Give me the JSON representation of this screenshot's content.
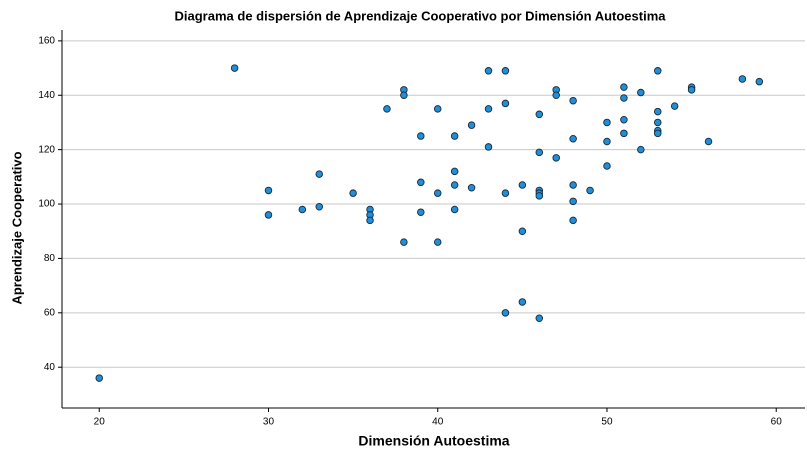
{
  "chart_data": {
    "type": "scatter",
    "title": "Diagrama de dispersión de Aprendizaje Cooperativo por Dimensión Autoestima",
    "x_label": "Dimensión Autoestima",
    "y_label": "Aprendizaje Cooperativo",
    "color": "#1e8fd8",
    "edge_color": "#1a2a3a",
    "grid": true,
    "x": [
      20,
      28,
      30,
      30,
      32,
      33,
      33,
      35,
      36,
      36,
      36,
      37,
      38,
      38,
      38,
      39,
      39,
      39,
      40,
      40,
      40,
      41,
      41,
      41,
      41,
      42,
      42,
      43,
      43,
      43,
      44,
      44,
      44,
      44,
      45,
      45,
      45,
      46,
      46,
      46,
      46,
      46,
      46,
      47,
      47,
      47,
      48,
      48,
      48,
      48,
      48,
      49,
      50,
      50,
      50,
      51,
      51,
      51,
      51,
      52,
      52,
      53,
      53,
      53,
      53,
      53,
      54,
      55,
      55,
      56,
      58,
      59
    ],
    "values": [
      36,
      150,
      105,
      96,
      98,
      111,
      99,
      104,
      98,
      96,
      94,
      135,
      142,
      140,
      86,
      125,
      108,
      97,
      135,
      104,
      86,
      125,
      112,
      107,
      98,
      129,
      106,
      149,
      135,
      121,
      149,
      137,
      104,
      60,
      107,
      90,
      64,
      133,
      119,
      105,
      104,
      103,
      58,
      142,
      140,
      117,
      138,
      124,
      107,
      101,
      94,
      105,
      130,
      123,
      114,
      143,
      139,
      131,
      126,
      141,
      120,
      149,
      134,
      130,
      127,
      126,
      136,
      143,
      142,
      123,
      146,
      145
    ],
    "xlim": [
      17.8,
      61.7
    ],
    "ylim": [
      25,
      164
    ],
    "xticks": [
      20,
      30,
      40,
      50,
      60
    ],
    "yticks": [
      40,
      60,
      80,
      100,
      120,
      140,
      160
    ]
  }
}
